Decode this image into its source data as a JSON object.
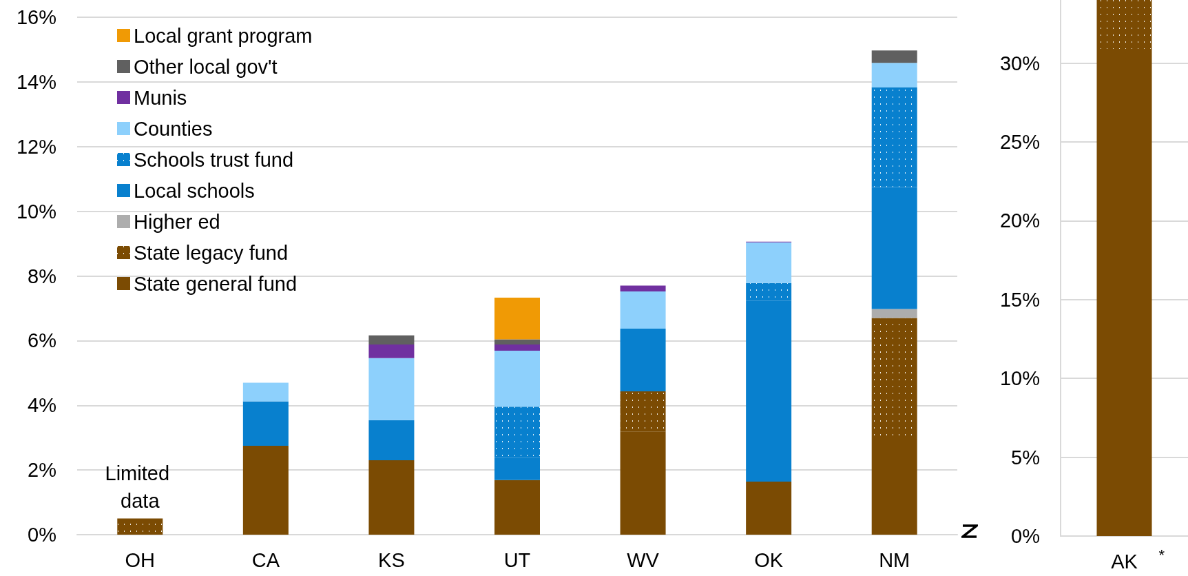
{
  "chart_data": [
    {
      "type": "bar",
      "stacked": true,
      "categories": [
        "OH",
        "CA",
        "KS",
        "UT",
        "WV",
        "OK",
        "NM"
      ],
      "series": [
        {
          "name": "State general fund",
          "color": "#7b4b03",
          "values": [
            null,
            2.75,
            2.3,
            1.69,
            3.19,
            1.64,
            3.07
          ]
        },
        {
          "name": "State legacy fund",
          "color": "#7b4b03",
          "values": [
            0.5,
            null,
            null,
            null,
            1.24,
            null,
            3.63
          ]
        },
        {
          "name": "Higher ed",
          "color": "#adadad",
          "values": [
            null,
            null,
            null,
            null,
            null,
            null,
            0.28
          ]
        },
        {
          "name": "Local schools",
          "color": "#0880ce",
          "values": [
            null,
            1.37,
            1.24,
            0.68,
            1.94,
            5.6,
            3.77
          ]
        },
        {
          "name": "Schools trust fund",
          "color": "#0880ce",
          "values": [
            null,
            null,
            null,
            1.59,
            null,
            0.54,
            3.09
          ]
        },
        {
          "name": "Counties",
          "color": "#8dd0fc",
          "values": [
            null,
            0.58,
            1.92,
            1.73,
            1.15,
            1.26,
            0.75
          ]
        },
        {
          "name": "Munis",
          "color": "#7030a0",
          "values": [
            null,
            null,
            0.42,
            0.19,
            0.18,
            0.02,
            null
          ]
        },
        {
          "name": "Other local gov't",
          "color": "#606060",
          "values": [
            null,
            null,
            0.28,
            0.16,
            null,
            null,
            0.38
          ]
        },
        {
          "name": "Local grant program",
          "color": "#f09a05",
          "values": [
            null,
            null,
            null,
            1.29,
            null,
            null,
            null
          ]
        }
      ],
      "ylim": [
        0,
        16
      ],
      "yticks": [
        {
          "value": 0,
          "label": "0%"
        },
        {
          "value": 2,
          "label": "2%"
        },
        {
          "value": 4,
          "label": "4%"
        },
        {
          "value": 6,
          "label": "6%"
        },
        {
          "value": 8,
          "label": "8%"
        },
        {
          "value": 10,
          "label": "10%"
        },
        {
          "value": 12,
          "label": "12%"
        },
        {
          "value": 14,
          "label": "14%"
        },
        {
          "value": 16,
          "label": "16%"
        }
      ],
      "grid": "y",
      "legend": "top left",
      "annotations": [
        {
          "text": "Limited data",
          "x": "OH",
          "y": 0.5
        }
      ]
    },
    {
      "type": "bar",
      "stacked": true,
      "categories": [
        "AK"
      ],
      "series": [
        {
          "color": "#7b4b03",
          "values": [
            30.9
          ]
        },
        {
          "color": "#7b4b03",
          "values": [
            3.1
          ]
        }
      ],
      "ylim": [
        0,
        34
      ],
      "yticks": [
        {
          "value": 0,
          "label": "0%"
        },
        {
          "value": 5,
          "label": "5%"
        },
        {
          "value": 10,
          "label": "10%"
        },
        {
          "value": 15,
          "label": "15%"
        },
        {
          "value": 20,
          "label": "20%"
        },
        {
          "value": 25,
          "label": "25%"
        },
        {
          "value": 30,
          "label": "30%"
        }
      ],
      "grid": "y",
      "legend": false,
      "annotations": [
        "*"
      ]
    }
  ]
}
